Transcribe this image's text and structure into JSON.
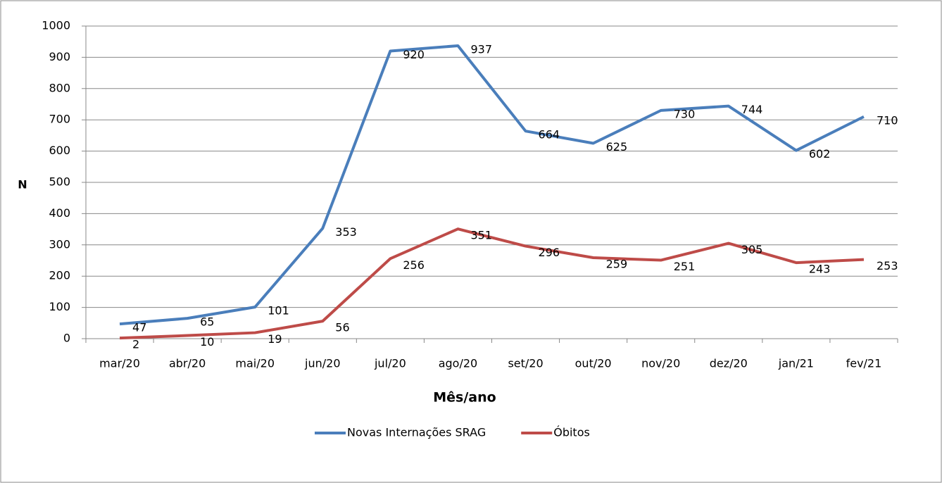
{
  "chart_data": {
    "type": "line",
    "x_label": "Mês/ano",
    "y_label": "N",
    "categories": [
      "mar/20",
      "abr/20",
      "mai/20",
      "jun/20",
      "jul/20",
      "ago/20",
      "set/20",
      "out/20",
      "nov/20",
      "dez/20",
      "jan/21",
      "fev/21"
    ],
    "series": [
      {
        "name": "Novas Internações SRAG",
        "color": "#4a7ebb",
        "values": [
          47,
          65,
          101,
          353,
          920,
          937,
          664,
          625,
          730,
          744,
          602,
          710
        ]
      },
      {
        "name": "Óbitos",
        "color": "#be4b48",
        "values": [
          2,
          10,
          19,
          56,
          256,
          351,
          296,
          259,
          251,
          305,
          243,
          253
        ]
      }
    ],
    "ylim": [
      0,
      1000
    ],
    "yticks": [
      0,
      100,
      200,
      300,
      400,
      500,
      600,
      700,
      800,
      900,
      1000
    ],
    "grid": true,
    "legend": "bottom"
  }
}
